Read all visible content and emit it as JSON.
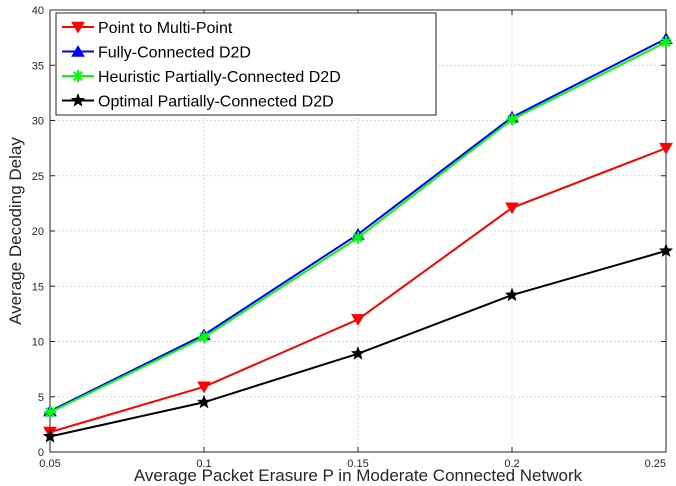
{
  "chart_data": {
    "type": "line",
    "title": "",
    "xlabel": "Average Packet Erasure P in Moderate Connected Network",
    "ylabel": "Average Decoding Delay",
    "x": [
      0.05,
      0.1,
      0.15,
      0.2,
      0.25
    ],
    "xlim": [
      0.05,
      0.25
    ],
    "ylim": [
      0,
      40
    ],
    "xticks": [
      0.05,
      0.1,
      0.15,
      0.2,
      0.25
    ],
    "xtick_labels": [
      "0.05",
      "0.1",
      "0.15",
      "0.2",
      "0.25"
    ],
    "yticks": [
      0,
      5,
      10,
      15,
      20,
      25,
      30,
      35,
      40
    ],
    "ytick_labels": [
      "0",
      "5",
      "10",
      "15",
      "20",
      "25",
      "30",
      "35",
      "40"
    ],
    "grid": true,
    "legend_position": "top-left",
    "series": [
      {
        "name": "Point to Multi-Point",
        "values": [
          1.8,
          5.9,
          12.0,
          22.1,
          27.5
        ],
        "color": "#ff0000",
        "marker": "triangle-down"
      },
      {
        "name": "Fully-Connected D2D",
        "values": [
          3.7,
          10.6,
          19.7,
          30.3,
          37.4
        ],
        "color": "#0000ff",
        "marker": "triangle-up"
      },
      {
        "name": "Heuristic Partially-Connected D2D",
        "values": [
          3.6,
          10.4,
          19.4,
          30.1,
          37.1
        ],
        "color": "#00ff00",
        "marker": "asterisk"
      },
      {
        "name": "Optimal Partially-Connected D2D",
        "values": [
          1.4,
          4.5,
          8.9,
          14.2,
          18.2
        ],
        "color": "#000000",
        "marker": "star"
      }
    ]
  }
}
